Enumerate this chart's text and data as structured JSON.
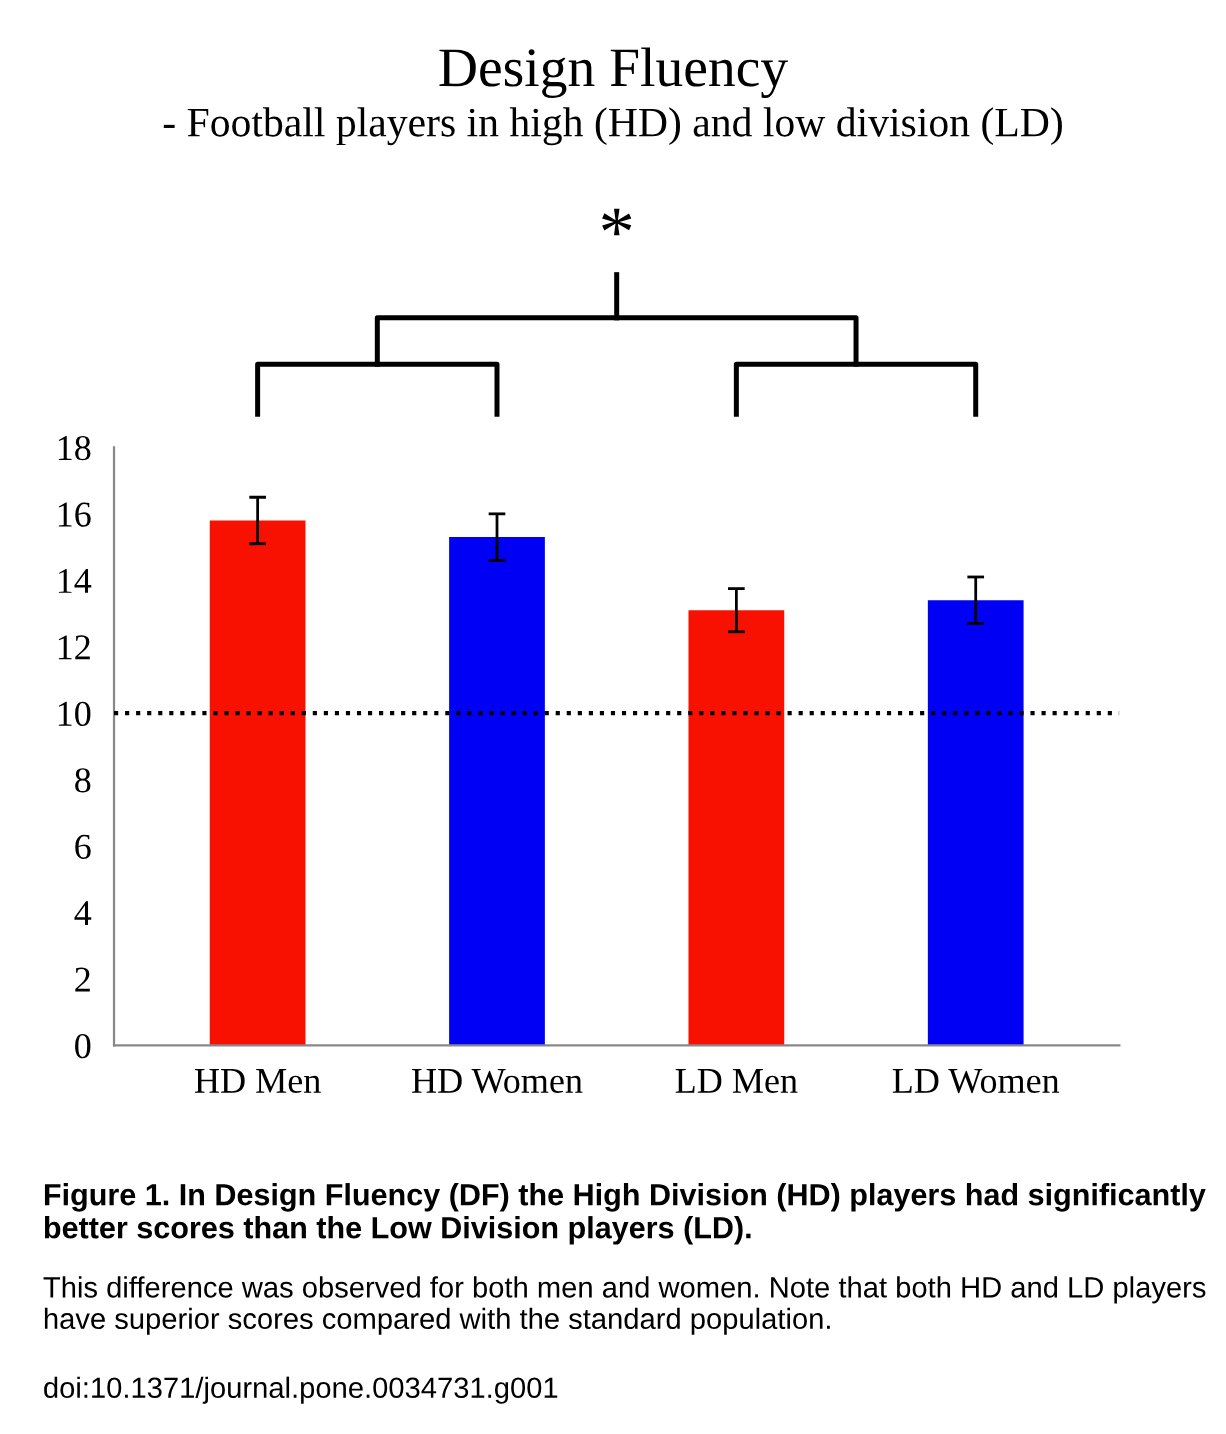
{
  "chart_data": {
    "type": "bar",
    "title": "Design Fluency",
    "subtitle": "- Football players in high (HD) and low division (LD)",
    "categories": [
      "HD Men",
      "HD Women",
      "LD Men",
      "LD Women"
    ],
    "values": [
      15.8,
      15.3,
      13.1,
      13.4
    ],
    "errors": [
      0.7,
      0.7,
      0.65,
      0.7
    ],
    "colors": [
      "#f81000",
      "#0000f5",
      "#f81000",
      "#0000f5"
    ],
    "ylim": [
      0,
      18
    ],
    "yticks": [
      0,
      2,
      4,
      6,
      8,
      10,
      12,
      14,
      16,
      18
    ],
    "grid": false,
    "ref_lines": [
      {
        "axis": "y",
        "value": 10,
        "color": "#000000",
        "line_style": "dotted"
      }
    ],
    "annotations": [
      "*",
      "Figure 1. In Design Fluency (DF) the High Division (HD) players had significantly better scores than the Low Division players (LD).",
      "This difference was observed for both men and women. Note that both HD and LD players have superior scores compared with the standard population.",
      "doi:10.1371/journal.pone.0034731.g001"
    ]
  }
}
